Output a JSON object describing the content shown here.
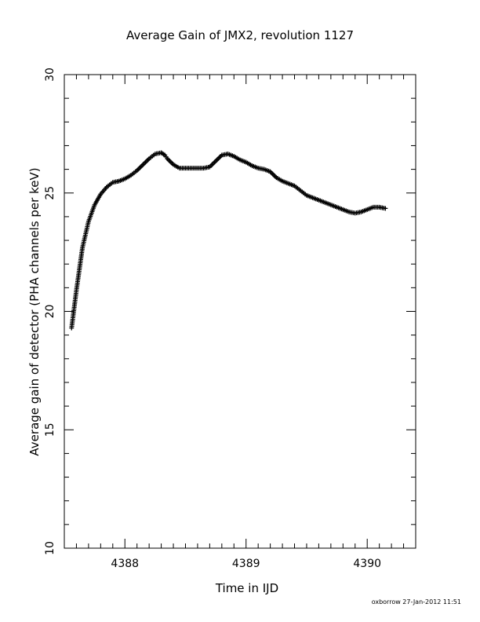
{
  "chart_data": {
    "type": "scatter",
    "title": "Average Gain of JMX2, revolution 1127",
    "xlabel": "Time in IJD",
    "ylabel": "Average gain of detector (PHA channels per keV)",
    "xlim": [
      4387.5,
      4390.4
    ],
    "ylim": [
      10,
      30
    ],
    "x_ticks": [
      4388,
      4389,
      4390
    ],
    "y_ticks": [
      10,
      15,
      20,
      25,
      30
    ],
    "x_tick_labels": [
      "4388",
      "4389",
      "4390"
    ],
    "y_tick_labels": [
      "10",
      "15",
      "20",
      "25",
      "30"
    ],
    "grid": false,
    "marker": "+",
    "series": [
      {
        "x": [
          4387.56,
          4387.6,
          4387.65,
          4387.7,
          4387.75,
          4387.8,
          4387.85,
          4387.9,
          4387.95,
          4388.0,
          4388.05,
          4388.1,
          4388.15,
          4388.2,
          4388.25,
          4388.3,
          4388.33,
          4388.35,
          4388.4,
          4388.45,
          4388.5,
          4388.55,
          4388.6,
          4388.65,
          4388.7,
          4388.75,
          4388.8,
          4388.85,
          4388.9,
          4388.95,
          4389.0,
          4389.05,
          4389.1,
          4389.15,
          4389.2,
          4389.25,
          4389.3,
          4389.35,
          4389.4,
          4389.45,
          4389.5,
          4389.55,
          4389.6,
          4389.65,
          4389.7,
          4389.75,
          4389.8,
          4389.85,
          4389.9,
          4389.95,
          4390.0,
          4390.05,
          4390.1,
          4390.15
        ],
        "y": [
          19.3,
          20.9,
          22.7,
          23.8,
          24.5,
          24.95,
          25.25,
          25.45,
          25.5,
          25.6,
          25.75,
          25.95,
          26.2,
          26.45,
          26.65,
          26.7,
          26.6,
          26.45,
          26.2,
          26.05,
          26.05,
          26.05,
          26.05,
          26.05,
          26.1,
          26.35,
          26.6,
          26.65,
          26.55,
          26.4,
          26.3,
          26.15,
          26.05,
          26.0,
          25.9,
          25.65,
          25.5,
          25.4,
          25.3,
          25.1,
          24.9,
          24.8,
          24.7,
          24.6,
          24.5,
          24.4,
          24.3,
          24.2,
          24.15,
          24.2,
          24.3,
          24.4,
          24.4,
          24.35
        ]
      }
    ]
  },
  "footer": "oxborrow 27-Jan-2012 11:51"
}
